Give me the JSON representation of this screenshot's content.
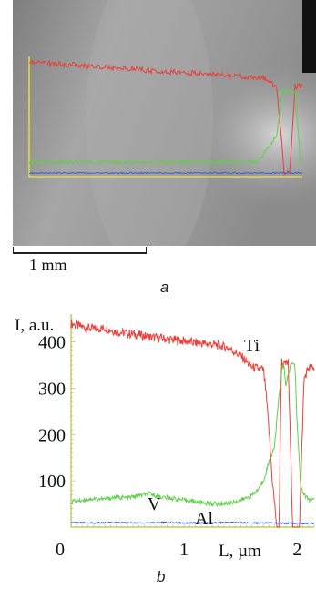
{
  "panel_a": {
    "letter": "a",
    "scale_bar_label": "1 mm",
    "colors": {
      "ti": "#e8403a",
      "v": "#5fd04a",
      "al": "#3b5fd6",
      "frame": "#e7d83a",
      "background": "#8f8f8f"
    }
  },
  "panel_b": {
    "letter": "b"
  },
  "chart_data": {
    "type": "line",
    "title": "",
    "ylabel": "I, a.u.",
    "xlabel": "L, µm",
    "xlim": [
      0,
      2.15
    ],
    "ylim": [
      0,
      460
    ],
    "x_ticks": [
      "0",
      "1",
      "2"
    ],
    "y_ticks": [
      "100",
      "200",
      "300",
      "400"
    ],
    "grid": false,
    "legend": "inline labels",
    "series": [
      {
        "name": "Ti",
        "color": "#e8403a",
        "x": [
          0,
          0.1,
          0.2,
          0.3,
          0.4,
          0.5,
          0.6,
          0.7,
          0.8,
          0.9,
          1.0,
          1.1,
          1.2,
          1.3,
          1.4,
          1.5,
          1.6,
          1.7,
          1.72,
          1.75,
          1.78,
          1.82,
          1.84,
          1.86,
          1.88,
          1.92,
          1.94,
          1.96,
          1.98,
          2.02,
          2.06,
          2.1,
          2.15
        ],
        "values": [
          440,
          432,
          428,
          430,
          422,
          418,
          415,
          410,
          408,
          404,
          402,
          398,
          396,
          393,
          386,
          370,
          345,
          340,
          300,
          210,
          100,
          0,
          0,
          360,
          350,
          355,
          180,
          0,
          0,
          0,
          320,
          345,
          340
        ]
      },
      {
        "name": "V",
        "color": "#5fd04a",
        "x": [
          0,
          0.1,
          0.2,
          0.3,
          0.4,
          0.5,
          0.6,
          0.7,
          0.8,
          0.9,
          1.0,
          1.1,
          1.2,
          1.3,
          1.4,
          1.5,
          1.6,
          1.65,
          1.7,
          1.75,
          1.8,
          1.83,
          1.86,
          1.88,
          1.9,
          1.92,
          1.95,
          1.98,
          2.0,
          2.03,
          2.06,
          2.1,
          2.15
        ],
        "values": [
          55,
          58,
          62,
          60,
          65,
          63,
          68,
          72,
          65,
          62,
          58,
          55,
          52,
          50,
          52,
          58,
          68,
          80,
          100,
          140,
          175,
          260,
          330,
          360,
          300,
          330,
          355,
          350,
          220,
          90,
          70,
          60,
          58
        ]
      },
      {
        "name": "Al",
        "color": "#3b5fd6",
        "x": [
          0,
          0.2,
          0.4,
          0.6,
          0.8,
          1.0,
          1.2,
          1.4,
          1.6,
          1.8,
          2.0,
          2.15
        ],
        "values": [
          10,
          9,
          10,
          9,
          10,
          9,
          9,
          10,
          9,
          9,
          8,
          8
        ]
      }
    ]
  }
}
